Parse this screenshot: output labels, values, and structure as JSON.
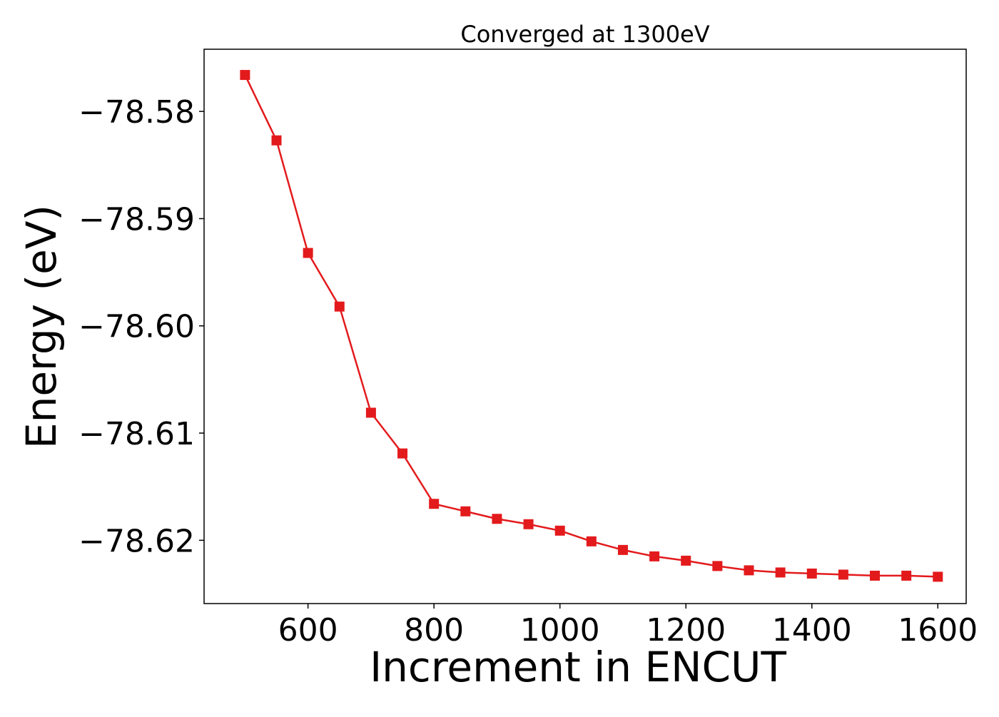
{
  "chart_data": {
    "type": "line",
    "title": "Converged at 1300eV",
    "xlabel": "Increment in ENCUT",
    "ylabel": "Energy (eV)",
    "xlim": [
      435,
      1645
    ],
    "ylim": [
      -78.6259,
      -78.5742
    ],
    "xticks": [
      600,
      800,
      1000,
      1200,
      1400,
      1600
    ],
    "yticks": [
      -78.58,
      -78.59,
      -78.6,
      -78.61,
      -78.62
    ],
    "ytick_labels": [
      "−78.58",
      "−78.59",
      "−78.60",
      "−78.61",
      "−78.62"
    ],
    "grid": false,
    "legend": "none",
    "color": "#e31a1c",
    "marker": "square",
    "series": [
      {
        "x": [
          500,
          550,
          600,
          650,
          700,
          750,
          800,
          850,
          900,
          950,
          1000,
          1050,
          1100,
          1150,
          1200,
          1250,
          1300,
          1350,
          1400,
          1450,
          1500,
          1550,
          1600
        ],
        "y": [
          -78.5766,
          -78.5827,
          -78.5932,
          -78.5982,
          -78.6081,
          -78.6119,
          -78.6166,
          -78.6173,
          -78.618,
          -78.6185,
          -78.6191,
          -78.6201,
          -78.6209,
          -78.6215,
          -78.6219,
          -78.6224,
          -78.6228,
          -78.623,
          -78.6231,
          -78.6232,
          -78.6233,
          -78.6233,
          -78.6234
        ]
      }
    ]
  }
}
